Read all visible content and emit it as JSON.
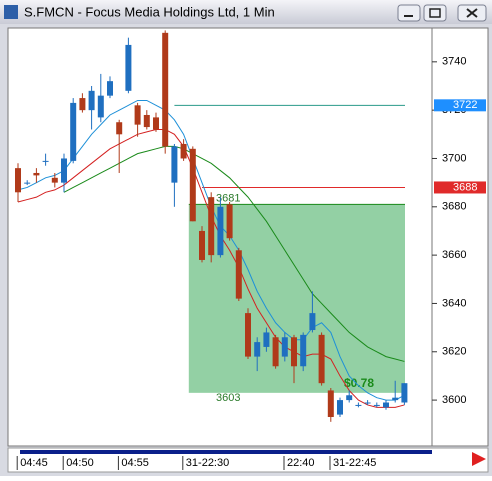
{
  "window_title": "S.FMCN - Focus Media Holdings Ltd, 1 Min",
  "chart_data": {
    "type": "candlestick",
    "categories": [
      null,
      "04:45",
      null,
      null,
      null,
      null,
      "04:50",
      null,
      null,
      null,
      null,
      null,
      "04:55",
      null,
      null,
      null,
      null,
      null,
      null,
      "31-22:30",
      null,
      null,
      null,
      null,
      null,
      null,
      null,
      null,
      null,
      null,
      "22:40",
      null,
      null,
      null,
      null,
      "31-22:45",
      null,
      null,
      null,
      null,
      null,
      null,
      null
    ],
    "open": [
      3696,
      3690,
      3694,
      3699,
      3692,
      3690,
      3699,
      3725,
      3720,
      3717,
      3726,
      3715,
      3728,
      3722,
      3718,
      3717,
      3752,
      3690,
      3706,
      3704,
      3670,
      3684,
      3660,
      3681,
      3662,
      3636,
      3618,
      3622,
      3626,
      3618,
      3626,
      3614,
      3629,
      3627,
      3604,
      3594,
      3600,
      3598,
      3599,
      3598,
      3597,
      3600,
      3599
    ],
    "high": [
      3698,
      3691,
      3696,
      3702,
      3694,
      3702,
      3725,
      3727,
      3730,
      3735,
      3734,
      3716,
      3750,
      3723,
      3720,
      3719,
      3753,
      3706,
      3708,
      3705,
      3672,
      3686,
      3684,
      3682,
      3663,
      3638,
      3626,
      3630,
      3627,
      3628,
      3627,
      3628,
      3645,
      3628,
      3605,
      3601,
      3604,
      3599,
      3600,
      3599,
      3600,
      3608,
      3607
    ],
    "low": [
      3682,
      3689,
      3690,
      3697,
      3688,
      3686,
      3698,
      3719,
      3712,
      3715,
      3725,
      3694,
      3727,
      3709,
      3712,
      3711,
      3702,
      3680,
      3699,
      3674,
      3657,
      3657,
      3659,
      3666,
      3641,
      3617,
      3612,
      3620,
      3613,
      3616,
      3607,
      3612,
      3628,
      3606,
      3591,
      3593,
      3599,
      3597,
      3598,
      3597,
      3596,
      3599,
      3598
    ],
    "close": [
      3686,
      3690,
      3693,
      3699,
      3690,
      3700,
      3723,
      3720,
      3728,
      3726,
      3732,
      3710,
      3747,
      3714,
      3713,
      3712,
      3705,
      3705,
      3700,
      3674,
      3658,
      3660,
      3680,
      3667,
      3642,
      3618,
      3624,
      3628,
      3614,
      3626,
      3614,
      3627,
      3636,
      3607,
      3593,
      3600,
      3602,
      3598,
      3599,
      3598,
      3599,
      3601,
      3607
    ],
    "up_color": "#1f6fc0",
    "down_color": "#b03a1a",
    "series": [
      {
        "color": "#1e90d8",
        "values": [
          3687,
          3688,
          3690,
          3692,
          3693,
          3695,
          3700,
          3705,
          3710,
          3714,
          3718,
          3720,
          3722,
          3724,
          3724,
          3722,
          3720,
          3716,
          3710,
          3700,
          3690,
          3680,
          3672,
          3668,
          3662,
          3654,
          3645,
          3638,
          3632,
          3628,
          3625,
          3625,
          3630,
          3632,
          3628,
          3618,
          3610,
          3606,
          3603,
          3601,
          3600,
          3600,
          3602
        ]
      },
      {
        "color": "#d42020",
        "values": [
          3682,
          3683,
          3684,
          3686,
          3687,
          3689,
          3692,
          3695,
          3698,
          3701,
          3704,
          3706,
          3708,
          3710,
          3711,
          3712,
          3712,
          3710,
          3705,
          3696,
          3686,
          3676,
          3668,
          3662,
          3655,
          3646,
          3638,
          3632,
          3626,
          3622,
          3620,
          3618,
          3619,
          3619,
          3617,
          3610,
          3604,
          3600,
          3598,
          3597,
          3597,
          3597,
          3598
        ]
      },
      {
        "color": "#1a8a1a",
        "values": [
          null,
          null,
          null,
          null,
          null,
          3686,
          3688,
          3690,
          3692,
          3694,
          3696,
          3698,
          3700,
          3702,
          3703,
          3704,
          3705,
          3705,
          3704,
          3702,
          3700,
          3698,
          3695,
          3692,
          3688,
          3684,
          3679,
          3674,
          3668,
          3662,
          3656,
          3650,
          3644,
          3640,
          3636,
          3632,
          3628,
          3625,
          3622,
          3620,
          3618,
          3617,
          3616
        ]
      }
    ],
    "levels": [
      {
        "value": 3722,
        "color": "#2a9a8a",
        "tag_color": "#1e8fff"
      },
      {
        "value": 3688,
        "color": "#e02a2a",
        "tag_color": "#e02a2a"
      }
    ],
    "box": {
      "top": 3681,
      "bottom": 3603,
      "color": "#3aaa5a",
      "change_label": "$0.78"
    },
    "ylim": [
      3581,
      3754
    ],
    "yticks": [
      3600,
      3620,
      3640,
      3660,
      3680,
      3700,
      3720,
      3740
    ]
  }
}
